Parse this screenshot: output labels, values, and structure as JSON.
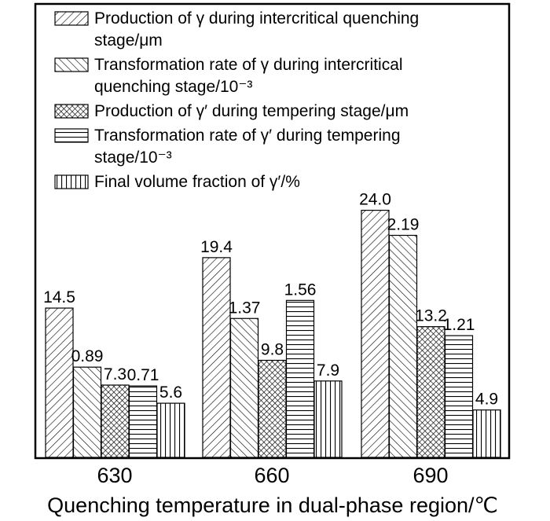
{
  "chart_data": {
    "type": "bar",
    "x_label": "Quenching temperature in dual-phase region/℃",
    "categories": [
      "630",
      "660",
      "690"
    ],
    "series": [
      {
        "name": "Production of γ during intercritical quenching stage/μm",
        "values": [
          14.5,
          19.4,
          24.0
        ],
        "value_labels": [
          "14.5",
          "19.4",
          "24.0"
        ]
      },
      {
        "name": "Transformation rate of γ during intercritical quenching stage/10⁻³",
        "values": [
          0.89,
          1.37,
          2.19
        ]
      },
      {
        "name": "Production of γ′ during tempering stage/μm",
        "values": [
          7.3,
          9.8,
          13.2
        ]
      },
      {
        "name": "Transformation rate of γ′ during tempering stage/10⁻³",
        "values": [
          0.71,
          1.56,
          1.21
        ]
      },
      {
        "name": "Final volume fraction of γ′/%",
        "values": [
          5.6,
          7.9,
          4.9
        ]
      }
    ]
  }
}
